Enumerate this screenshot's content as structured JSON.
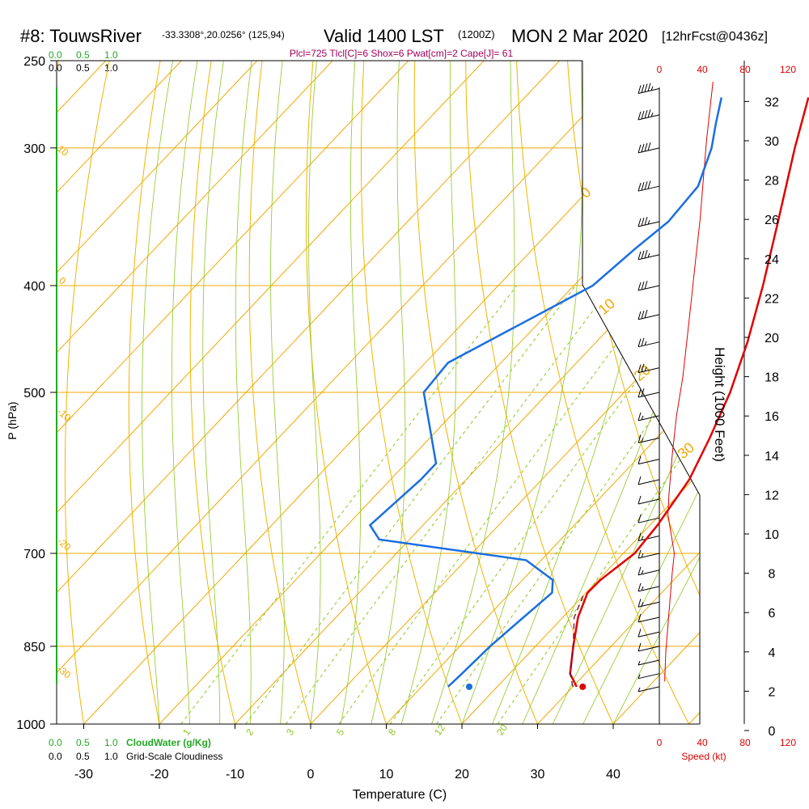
{
  "header": {
    "title": "#8: TouwsRiver",
    "coords": "-33.3308°,20.0256° (125,94)",
    "valid": "Valid 1400 LST",
    "valid_z": "(1200Z)",
    "date": "MON 2 Mar 2020",
    "fcst": "[12hrFcst@0436z]",
    "params": "Plcl=725 Tlcl[C]=6 Shox=6 Pwat[cm]=2 Cape[J]= 61"
  },
  "scale_labels": {
    "cloud_top": [
      "0.0",
      "0.5",
      "1.0"
    ],
    "cloudiness_top": [
      "0.0",
      "0.5",
      "1.0"
    ],
    "cloud_bottom": [
      "0.0",
      "0.5",
      "1.0"
    ],
    "cloudiness_bottom": [
      "0.0",
      "0.5",
      "1.0"
    ],
    "cloudwater_label": "CloudWater (g/Kg)",
    "cloudiness_label": "Grid-Scale Cloudiness"
  },
  "colors": {
    "temperature": "#e00000",
    "dewpoint": "#1a6fe0",
    "parcel": "#6b0a3c",
    "isotherm": "#f0a800",
    "dry_adiabat": "#f0b400",
    "moist_adiabat": "#8cc820",
    "mixing_ratio": "#8cc820",
    "cloud": "#22aa22",
    "wind_speed": "#e00000",
    "params_text": "#a0005a"
  },
  "chart_data": {
    "type": "skew-t log-p sounding",
    "xlabel": "Temperature (C)",
    "ylabel": "P (hPa)",
    "y2label": "Height (1000 Feet)",
    "x_ticks": [
      -30,
      -20,
      -10,
      0,
      10,
      20,
      30,
      40
    ],
    "p_ticks": [
      250,
      300,
      400,
      500,
      700,
      850,
      1000
    ],
    "height_ticks_kft": [
      0,
      2,
      4,
      6,
      8,
      10,
      12,
      14,
      16,
      18,
      20,
      22,
      24,
      26,
      28,
      30,
      32
    ],
    "speed_ticks_kt": [
      0,
      40,
      80,
      120
    ],
    "speed_label": "Speed (kt)",
    "isotherm_labels": [
      "10",
      "0",
      "-10",
      "-20",
      "-30"
    ],
    "dry_adiabat_labels": [
      "0",
      "10",
      "20",
      "30"
    ],
    "mixing_ratio_labels": [
      "1",
      "2",
      "3",
      "5",
      "8",
      "12",
      "20"
    ],
    "temperature": [
      {
        "p": 925,
        "t": 30.5
      },
      {
        "p": 900,
        "t": 28
      },
      {
        "p": 850,
        "t": 25
      },
      {
        "p": 800,
        "t": 22
      },
      {
        "p": 760,
        "t": 20.2
      },
      {
        "p": 740,
        "t": 20.3
      },
      {
        "p": 700,
        "t": 21.5
      },
      {
        "p": 660,
        "t": 21
      },
      {
        "p": 600,
        "t": 19.5
      },
      {
        "p": 550,
        "t": 17
      },
      {
        "p": 500,
        "t": 14
      },
      {
        "p": 450,
        "t": 10
      },
      {
        "p": 400,
        "t": 5
      },
      {
        "p": 350,
        "t": -1
      },
      {
        "p": 300,
        "t": -8
      },
      {
        "p": 270,
        "t": -12.5
      }
    ],
    "dewpoint": [
      {
        "p": 925,
        "t": 13.5
      },
      {
        "p": 900,
        "t": 13.7
      },
      {
        "p": 850,
        "t": 14
      },
      {
        "p": 800,
        "t": 14.8
      },
      {
        "p": 760,
        "t": 15.5
      },
      {
        "p": 740,
        "t": 14
      },
      {
        "p": 710,
        "t": 8
      },
      {
        "p": 680,
        "t": -14
      },
      {
        "p": 660,
        "t": -17
      },
      {
        "p": 600,
        "t": -16
      },
      {
        "p": 580,
        "t": -16
      },
      {
        "p": 500,
        "t": -26.5
      },
      {
        "p": 470,
        "t": -27
      },
      {
        "p": 400,
        "t": -17.5
      },
      {
        "p": 370,
        "t": -16.5
      },
      {
        "p": 350,
        "t": -15.5
      },
      {
        "p": 325,
        "t": -16
      },
      {
        "p": 300,
        "t": -19
      },
      {
        "p": 285,
        "t": -21.5
      },
      {
        "p": 270,
        "t": -24
      }
    ],
    "parcel": [
      {
        "p": 925,
        "t": 30
      },
      {
        "p": 900,
        "t": 28
      },
      {
        "p": 850,
        "t": 25
      },
      {
        "p": 800,
        "t": 21.5
      },
      {
        "p": 765,
        "t": 20
      }
    ],
    "surface_temperature": 31.3,
    "surface_dewpoint": 16.3,
    "surface_pressure": 925,
    "wind_speed_profile": [
      {
        "h": 2.5,
        "kt": 5
      },
      {
        "h": 4,
        "kt": 6
      },
      {
        "h": 6,
        "kt": 9
      },
      {
        "h": 8,
        "kt": 12
      },
      {
        "h": 9,
        "kt": 14
      },
      {
        "h": 11,
        "kt": 8
      },
      {
        "h": 12,
        "kt": 9
      },
      {
        "h": 14,
        "kt": 12
      },
      {
        "h": 16,
        "kt": 16
      },
      {
        "h": 18,
        "kt": 22
      },
      {
        "h": 20,
        "kt": 26
      },
      {
        "h": 22,
        "kt": 30
      },
      {
        "h": 24,
        "kt": 34
      },
      {
        "h": 26,
        "kt": 38
      },
      {
        "h": 28,
        "kt": 41
      },
      {
        "h": 30,
        "kt": 44
      },
      {
        "h": 32,
        "kt": 48
      },
      {
        "h": 33,
        "kt": 50
      }
    ],
    "wind_barbs": [
      {
        "p": 925,
        "kt": 5
      },
      {
        "p": 900,
        "kt": 5
      },
      {
        "p": 875,
        "kt": 5
      },
      {
        "p": 850,
        "kt": 10
      },
      {
        "p": 825,
        "kt": 10
      },
      {
        "p": 800,
        "kt": 10
      },
      {
        "p": 775,
        "kt": 15
      },
      {
        "p": 750,
        "kt": 15
      },
      {
        "p": 725,
        "kt": 15
      },
      {
        "p": 700,
        "kt": 15
      },
      {
        "p": 675,
        "kt": 15
      },
      {
        "p": 650,
        "kt": 10
      },
      {
        "p": 625,
        "kt": 10
      },
      {
        "p": 600,
        "kt": 10
      },
      {
        "p": 575,
        "kt": 10
      },
      {
        "p": 550,
        "kt": 15
      },
      {
        "p": 525,
        "kt": 15
      },
      {
        "p": 500,
        "kt": 20
      },
      {
        "p": 475,
        "kt": 25
      },
      {
        "p": 450,
        "kt": 25
      },
      {
        "p": 425,
        "kt": 30
      },
      {
        "p": 400,
        "kt": 30
      },
      {
        "p": 375,
        "kt": 35
      },
      {
        "p": 350,
        "kt": 35
      },
      {
        "p": 325,
        "kt": 40
      },
      {
        "p": 300,
        "kt": 40
      },
      {
        "p": 280,
        "kt": 45
      },
      {
        "p": 265,
        "kt": 45
      }
    ]
  }
}
